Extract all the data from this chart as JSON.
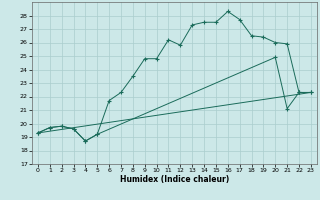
{
  "xlabel": "Humidex (Indice chaleur)",
  "background_color": "#cce8e8",
  "grid_color": "#aacece",
  "line_color": "#1a6b5a",
  "xlim_min": -0.5,
  "xlim_max": 23.5,
  "ylim_min": 17,
  "ylim_max": 29,
  "xticks": [
    0,
    1,
    2,
    3,
    4,
    5,
    6,
    7,
    8,
    9,
    10,
    11,
    12,
    13,
    14,
    15,
    16,
    17,
    18,
    19,
    20,
    21,
    22,
    23
  ],
  "yticks": [
    17,
    18,
    19,
    20,
    21,
    22,
    23,
    24,
    25,
    26,
    27,
    28
  ],
  "line1": {
    "comment": "straight diagonal from 0,19.3 to 23,22.3",
    "x": [
      0,
      23
    ],
    "y": [
      19.3,
      22.3
    ]
  },
  "line2": {
    "x": [
      0,
      1,
      2,
      3,
      4,
      5,
      6,
      7,
      8,
      9,
      10,
      11,
      12,
      13,
      14,
      15,
      16,
      17,
      18,
      19,
      20,
      21,
      22,
      23
    ],
    "y": [
      19.3,
      19.7,
      19.8,
      19.6,
      18.7,
      19.2,
      21.7,
      22.3,
      23.5,
      24.8,
      24.8,
      26.2,
      25.8,
      27.3,
      27.5,
      27.5,
      28.3,
      27.7,
      26.5,
      26.4,
      26.0,
      25.9,
      22.3,
      22.3
    ]
  },
  "line3": {
    "x": [
      0,
      1,
      2,
      3,
      4,
      5,
      20,
      21,
      22,
      23
    ],
    "y": [
      19.3,
      19.7,
      19.8,
      19.6,
      18.7,
      19.2,
      24.9,
      21.1,
      22.3,
      22.3
    ]
  }
}
